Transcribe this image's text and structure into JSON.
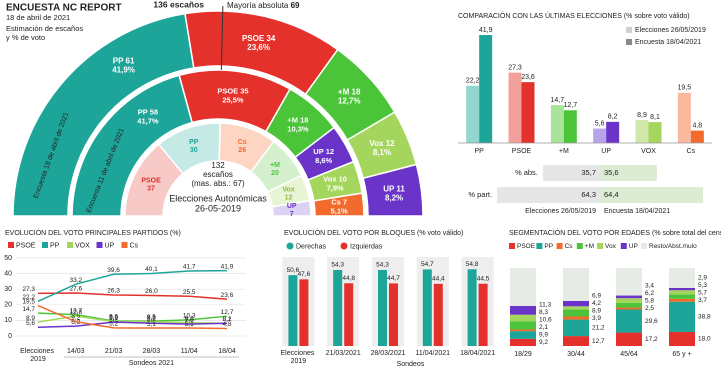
{
  "header": {
    "title": "ENCUESTA NC REPORT",
    "date": "18 de abril de 2021",
    "subtitle": [
      "Estimación de escaños",
      "y % de voto"
    ]
  },
  "chart_data": [
    {
      "type": "hemicycle",
      "total_label": "136 escaños",
      "majority_label": "Mayoría absoluta",
      "majority": 69,
      "rings": [
        {
          "name": "Encuesta 18 de abril de 2021",
          "parties": [
            "PP",
            "PSOE",
            "+M",
            "Vox",
            "UP"
          ],
          "values": [
            61,
            34,
            18,
            12,
            11
          ],
          "share_labels": [
            "41,9%",
            "23,6%",
            "12,7%",
            "8,1%",
            "8,2%"
          ],
          "colors": [
            "#1ea599",
            "#e4312b",
            "#4cc43a",
            "#a4d65e",
            "#6b34c9"
          ]
        },
        {
          "name": "Encuesta 11 de abril de 2021",
          "parties": [
            "PP",
            "PSOE",
            "+M",
            "UP",
            "Vox",
            "Cs"
          ],
          "values": [
            58,
            35,
            18,
            12,
            10,
            7
          ],
          "share_labels": [
            "41,7%",
            "25,5%",
            "10,3%",
            "8,6%",
            "7,9%",
            "5,1%"
          ],
          "colors": [
            "#1ea599",
            "#e4312b",
            "#4cc43a",
            "#6b34c9",
            "#a4d65e",
            "#f26b2d"
          ]
        },
        {
          "name": [
            "Elecciones Autonómicas",
            "26-05-2019"
          ],
          "center_text": [
            "132",
            "escaños",
            "(mas. abs.: 67)"
          ],
          "parties": [
            "PSOE",
            "PP",
            "Cs",
            "+M",
            "Vox",
            "UP"
          ],
          "values": [
            37,
            30,
            26,
            20,
            12,
            7
          ],
          "colors": [
            "#f7c9c7",
            "#c5e9e5",
            "#fcd6c3",
            "#d5f0cc",
            "#e8f5d4",
            "#dcd2f4"
          ],
          "label_colors": [
            "#e4312b",
            "#1ea599",
            "#f26b2d",
            "#4cc43a",
            "#8cbf45",
            "#6b34c9"
          ]
        }
      ]
    },
    {
      "type": "grouped-bar",
      "title": "COMPARACIÓN CON LAS ÚLTIMAS ELECCIONES (% sobre voto válido)",
      "legend": "top-right",
      "categories": [
        "PP",
        "PSOE",
        "+M",
        "UP",
        "VOX",
        "Cs"
      ],
      "series": [
        {
          "name": "Elecciones 26/05/2019",
          "color": "#cfcfcf",
          "colors": [
            "#93d5cf",
            "#f3a09c",
            "#a9e49d",
            "#b7a3ea",
            "#d0e9ab",
            "#f8b99c"
          ],
          "values": [
            22.2,
            27.3,
            14.7,
            5.6,
            8.9,
            19.5
          ],
          "value_labels": [
            "22,2",
            "27,3",
            "14,7",
            "5,6",
            "8,9",
            "19,5"
          ]
        },
        {
          "name": "Encuesta 18/04/2021",
          "color": "#8a8a8a",
          "colors": [
            "#1ea599",
            "#e4312b",
            "#4cc43a",
            "#6b34c9",
            "#a4d65e",
            "#f26b2d"
          ],
          "values": [
            41.9,
            23.6,
            12.7,
            8.2,
            8.1,
            4.8
          ],
          "value_labels": [
            "41,9",
            "23,6",
            "12,7",
            "8,2",
            "8,1",
            "4,8"
          ]
        }
      ]
    },
    {
      "type": "diverging-bar",
      "rows": [
        "% abs.",
        "% part."
      ],
      "series": [
        {
          "name": "Elecciones 26/05/2019",
          "color": "#e6e6e6",
          "values": [
            35.7,
            64.3
          ],
          "value_labels": [
            "35,7",
            "64,3"
          ]
        },
        {
          "name": "Encuesta 18/04/2021",
          "color": "#dcecd4",
          "values": [
            35.6,
            64.4
          ],
          "value_labels": [
            "35,6",
            "64,4"
          ]
        }
      ]
    },
    {
      "type": "line",
      "title": "EVOLUCIÓN DEL VOTO PRINCIPALES PARTIDOS (%)",
      "categories": [
        "Elecciones 2019",
        "14/03",
        "21/03",
        "28/03",
        "11/04",
        "18/04"
      ],
      "group_label": "Sondeos 2021",
      "ylim": [
        0,
        50
      ],
      "yticks": [
        0,
        10,
        20,
        30,
        40,
        50
      ],
      "grid": true,
      "series": [
        {
          "name": "PSOE",
          "color": "#e4312b",
          "values": [
            27.3,
            27.6,
            26.3,
            26.0,
            25.5,
            23.6
          ],
          "value_labels": [
            "27,3",
            "27,6",
            "26,3",
            "26,0",
            "25,5",
            "23,6"
          ]
        },
        {
          "name": "PP",
          "color": "#1ea599",
          "values": [
            22.2,
            33.2,
            39.6,
            40.1,
            41.7,
            41.9
          ],
          "value_labels": [
            "22,2",
            "33,2",
            "39,6",
            "40,1",
            "41,7",
            "41,9"
          ]
        },
        {
          "name": null,
          "color": "#4cc43a",
          "values": [
            14.7,
            13.7,
            9.6,
            9.5,
            10.3,
            12.7
          ],
          "value_labels": [
            "14,7",
            "13,7",
            "9,6",
            "9,5",
            "10,3",
            "12,7"
          ]
        },
        {
          "name": "VOX",
          "color": "#a4d65e",
          "values": [
            8.9,
            12.8,
            9.2,
            9.2,
            8.6,
            8.1
          ],
          "value_labels": [
            "8,9",
            "12,8",
            "9,2",
            "9,2",
            "8,6",
            "8,1"
          ]
        },
        {
          "name": "UP",
          "color": "#6b34c9",
          "values": [
            5.6,
            6.3,
            8.9,
            8.2,
            7.6,
            8.2
          ],
          "value_labels": [
            "5,6",
            "6,3",
            "8,9",
            "8,2",
            "7,6",
            "8,2"
          ]
        },
        {
          "name": "Cs",
          "color": "#f26b2d",
          "values": [
            19.5,
            9.2,
            5.2,
            5.1,
            5.1,
            4.8
          ],
          "value_labels": [
            "19,5",
            "9,2",
            "5,2",
            "5,1",
            "5,1",
            "4,8"
          ]
        }
      ]
    },
    {
      "type": "bar",
      "title": "EVOLUCIÓN DEL VOTO POR BLOQUES (% voto válido)",
      "categories": [
        "Elecciones 2019",
        "21/03/2021",
        "28/03/2021",
        "11/04/2021",
        "18/04/2021"
      ],
      "group_label": "Sondeos",
      "series": [
        {
          "name": "Derechas",
          "color": "#1ea599",
          "values": [
            50.6,
            54.3,
            54.3,
            54.7,
            54.8
          ],
          "value_labels": [
            "50,6",
            "54,3",
            "54,3",
            "54,7",
            "54,8"
          ]
        },
        {
          "name": "Izquierdas",
          "color": "#e4312b",
          "values": [
            47.6,
            44.8,
            44.7,
            44.4,
            44.5
          ],
          "value_labels": [
            "47,6",
            "44,8",
            "44,7",
            "44,4",
            "44,5"
          ]
        }
      ]
    },
    {
      "type": "stacked-bar",
      "title": "SEGMENTACIÓN DEL VOTO POR EDADES (% sobre total del censo)",
      "categories": [
        "18/29",
        "30/44",
        "45/64",
        "65 y +"
      ],
      "series": [
        {
          "name": "PSOE",
          "color": "#e4312b",
          "values": [
            9.2,
            12.7,
            17.2,
            18.0
          ],
          "value_labels": [
            "9,2",
            "12,7",
            "17,2",
            "18,0"
          ]
        },
        {
          "name": "PP",
          "color": "#1ea599",
          "values": [
            9.9,
            21.2,
            29.6,
            38.8
          ],
          "value_labels": [
            "9,9",
            "21,2",
            "29,6",
            "38,8"
          ]
        },
        {
          "name": "Cs",
          "color": "#f26b2d",
          "values": [
            2.1,
            3.9,
            2.5,
            3.7
          ],
          "value_labels": [
            "2,1",
            "3,9",
            "2,5",
            "3,7"
          ]
        },
        {
          "name": "+M",
          "color": "#4cc43a",
          "values": [
            10.6,
            8.9,
            5.8,
            5.7
          ],
          "value_labels": [
            "10,6",
            "8,9",
            "5,8",
            "5,7"
          ]
        },
        {
          "name": "Vox",
          "color": "#a4d65e",
          "values": [
            8.3,
            4.2,
            6.2,
            5.3
          ],
          "value_labels": [
            "8,3",
            "4,2",
            "6,2",
            "5,3"
          ]
        },
        {
          "name": "UP",
          "color": "#6b34c9",
          "values": [
            11.3,
            6.9,
            3.4,
            2.9
          ],
          "value_labels": [
            "11,3",
            "6,9",
            "3,4",
            "2,9"
          ]
        },
        {
          "name": "Resto/Abst./nulo",
          "color": "#e6ebe6",
          "values": [
            48.6,
            42.2,
            35.3,
            25.6
          ]
        }
      ]
    }
  ]
}
